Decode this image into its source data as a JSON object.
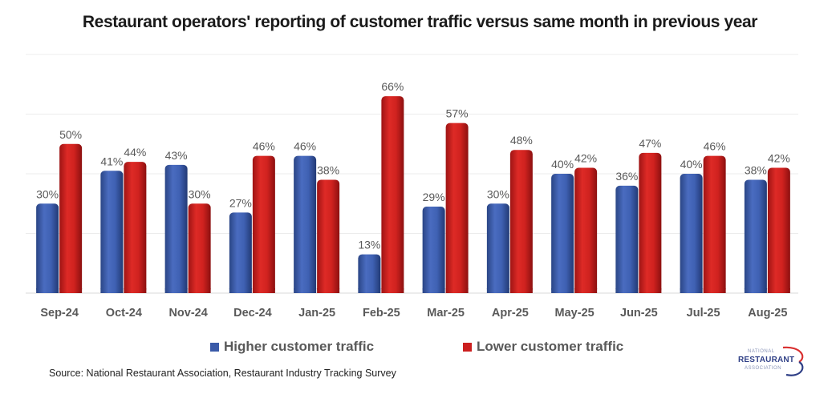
{
  "chart_data": {
    "type": "bar",
    "title": "Restaurant operators' reporting of customer traffic versus same month in previous year",
    "xlabel": "",
    "ylabel": "",
    "ylim": [
      0,
      80
    ],
    "grid": true,
    "gridlines": [
      20,
      40,
      60,
      80
    ],
    "legend_position": "bottom",
    "categories": [
      "Sep-24",
      "Oct-24",
      "Nov-24",
      "Dec-24",
      "Jan-25",
      "Feb-25",
      "Mar-25",
      "Apr-25",
      "May-25",
      "Jun-25",
      "Jul-25",
      "Aug-25"
    ],
    "series": [
      {
        "name": "Higher customer traffic",
        "color": "#3a5aa8",
        "values": [
          30,
          41,
          43,
          27,
          46,
          13,
          29,
          30,
          40,
          36,
          40,
          38
        ]
      },
      {
        "name": "Lower customer traffic",
        "color": "#cc1f1f",
        "values": [
          50,
          44,
          30,
          46,
          38,
          66,
          57,
          48,
          42,
          47,
          46,
          42
        ]
      }
    ],
    "value_suffix": "%",
    "source": "Source: National Restaurant Association, Restaurant Industry Tracking Survey"
  },
  "logo": {
    "line1": "NATIONAL",
    "line2": "RESTAURANT",
    "line3": "ASSOCIATION"
  }
}
